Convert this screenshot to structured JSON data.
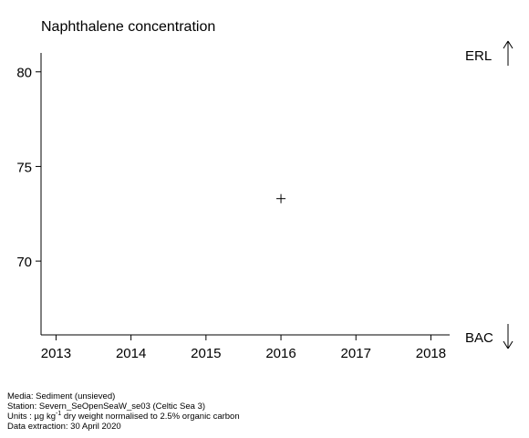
{
  "chart_data": {
    "type": "scatter",
    "title": "Naphthalene concentration",
    "xlabel": "",
    "ylabel": "",
    "x_ticks": [
      "2013",
      "2014",
      "2015",
      "2016",
      "2017",
      "2018"
    ],
    "y_ticks": [
      "70",
      "75",
      "80"
    ],
    "xlim": [
      2012.8,
      2018.25
    ],
    "ylim": [
      66.1,
      81.0
    ],
    "points": [
      {
        "x": 2016,
        "y": 73.3,
        "marker": "+"
      }
    ],
    "reference_labels": {
      "upper": "ERL",
      "lower": "BAC"
    },
    "grid": false
  },
  "footer": {
    "media": "Media: Sediment (unsieved)",
    "station": "Station: Severn_SeOpenSeaW_se03 (Celtic Sea 3)",
    "units_prefix": "Units : µg kg",
    "units_superscript": "-1",
    "units_suffix": " dry weight normalised to 2.5% organic carbon",
    "extraction": "Data extraction: 30 April 2020"
  }
}
